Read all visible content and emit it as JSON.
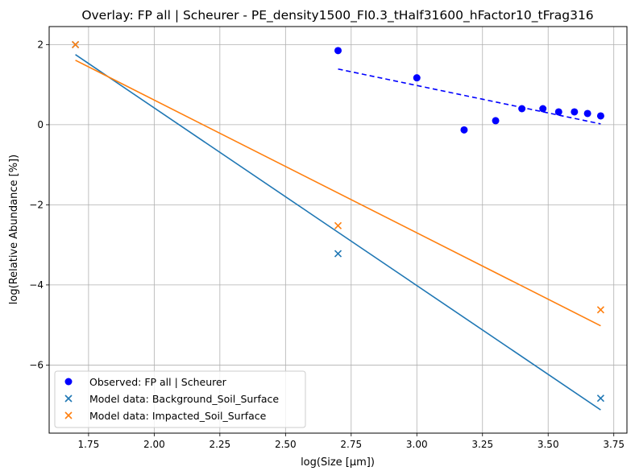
{
  "chart_data": {
    "type": "scatter",
    "title": "Overlay: FP all | Scheurer - PE_density1500_FI0.3_tHalf31600_hFactor10_tFrag316",
    "xlabel": "log(Size [µm])",
    "ylabel": "log(Relative Abundance [%])",
    "xlim": [
      1.6,
      3.8
    ],
    "ylim": [
      -7.7,
      2.45
    ],
    "xticks": [
      1.75,
      2.0,
      2.25,
      2.5,
      2.75,
      3.0,
      3.25,
      3.5,
      3.75
    ],
    "xtick_labels": [
      "1.75",
      "2.00",
      "2.25",
      "2.50",
      "2.75",
      "3.00",
      "3.25",
      "3.50",
      "3.75"
    ],
    "yticks": [
      2,
      0,
      -2,
      -4,
      -6
    ],
    "ytick_labels": [
      "2",
      "0",
      "−2",
      "−4",
      "−6"
    ],
    "grid": true,
    "legend_position": "lower-left",
    "series": [
      {
        "name": "Observed: FP all | Scheurer",
        "kind": "scatter",
        "marker": "circle",
        "color": "#0000ff",
        "x": [
          2.7,
          3.0,
          3.18,
          3.3,
          3.4,
          3.48,
          3.54,
          3.6,
          3.65,
          3.7
        ],
        "y": [
          1.85,
          1.17,
          -0.13,
          0.1,
          0.4,
          0.4,
          0.32,
          0.32,
          0.28,
          0.22
        ]
      },
      {
        "name": "Model data: Background_Soil_Surface",
        "kind": "scatter",
        "marker": "x",
        "color": "#1f77b4",
        "x": [
          1.7,
          2.7,
          3.7
        ],
        "y": [
          2.0,
          -3.22,
          -6.83
        ]
      },
      {
        "name": "Model data: Impacted_Soil_Surface",
        "kind": "scatter",
        "marker": "x",
        "color": "#ff7f0e",
        "x": [
          1.7,
          2.7,
          3.7
        ],
        "y": [
          2.0,
          -2.52,
          -4.62
        ]
      }
    ],
    "fit_lines": [
      {
        "series": "Observed: FP all | Scheurer",
        "color": "#0000ff",
        "style": "dashed",
        "x": [
          2.7,
          3.7
        ],
        "y": [
          1.39,
          0.02
        ]
      },
      {
        "series": "Model data: Background_Soil_Surface",
        "color": "#1f77b4",
        "style": "solid",
        "x": [
          1.7,
          3.7
        ],
        "y": [
          1.75,
          -7.12
        ]
      },
      {
        "series": "Model data: Impacted_Soil_Surface",
        "color": "#ff7f0e",
        "style": "solid",
        "x": [
          1.7,
          3.7
        ],
        "y": [
          1.61,
          -5.02
        ]
      }
    ]
  }
}
